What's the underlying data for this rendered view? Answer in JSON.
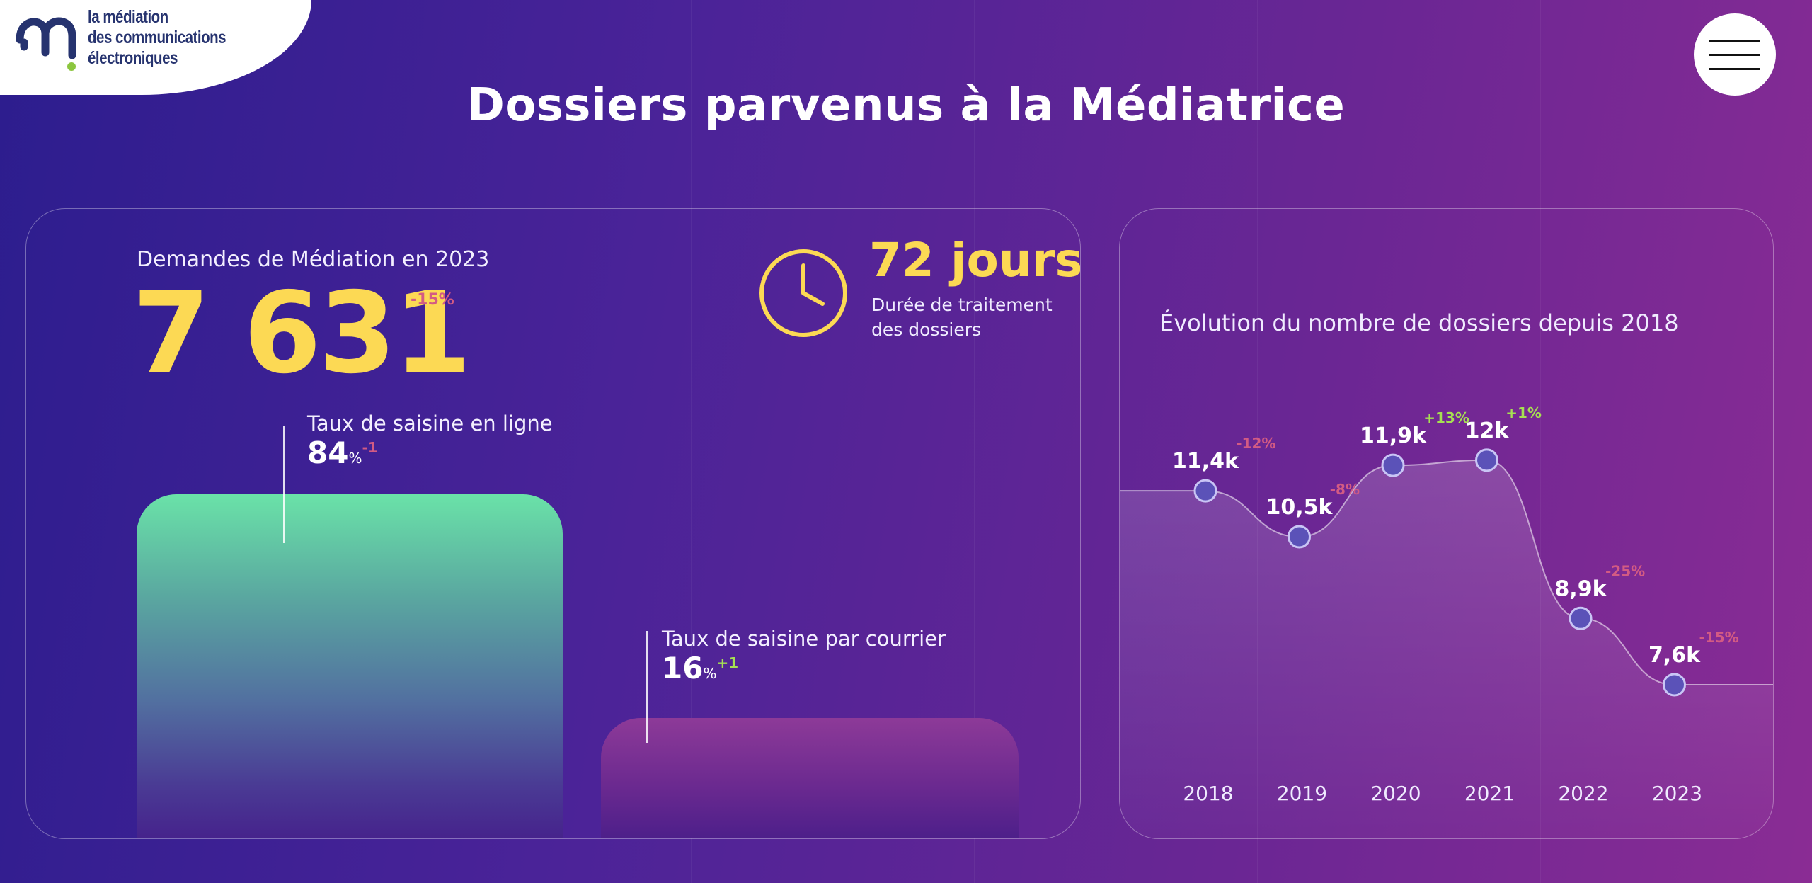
{
  "logo": {
    "name_lines": [
      "la médiation",
      "des communications",
      "électroniques"
    ],
    "mark_color": "#26336f",
    "dot_color": "#8cc63f"
  },
  "menu": {
    "icon": "hamburger-icon"
  },
  "page_title": "Dossiers parvenus à la Médiatrice",
  "demandes": {
    "label": "Demandes de Médiation en 2023",
    "value": "7 631",
    "change": "-15%"
  },
  "duree": {
    "icon": "clock-icon",
    "value": "72 jours",
    "caption": "Durée de traitement des dossiers"
  },
  "saisine_en_ligne": {
    "label": "Taux de saisine en ligne",
    "value": "84",
    "unit": "%",
    "change": "-1",
    "share": 84
  },
  "saisine_courrier": {
    "label": "Taux de saisine par courrier",
    "value": "16",
    "unit": "%",
    "change": "+1",
    "share": 16
  },
  "colors": {
    "accent_yellow": "#fcd954",
    "negative": "#d35b83",
    "positive": "#a6e052",
    "point_fill": "#5b52b8"
  },
  "chart_data": {
    "type": "area",
    "title": "Évolution du nombre de dossiers depuis 2018",
    "x": [
      "2018",
      "2019",
      "2020",
      "2021",
      "2022",
      "2023"
    ],
    "values": [
      11.4,
      10.5,
      11.9,
      12.0,
      8.9,
      7.6
    ],
    "value_labels": [
      "11,4k",
      "10,5k",
      "11,9k",
      "12k",
      "8,9k",
      "7,6k"
    ],
    "changes": [
      "-12%",
      "-8%",
      "+13%",
      "+1%",
      "-25%",
      "-15%"
    ],
    "change_signs": [
      "neg",
      "neg",
      "pos",
      "pos",
      "neg",
      "neg"
    ],
    "ylim": [
      7.1,
      12.9
    ],
    "grid": false
  }
}
